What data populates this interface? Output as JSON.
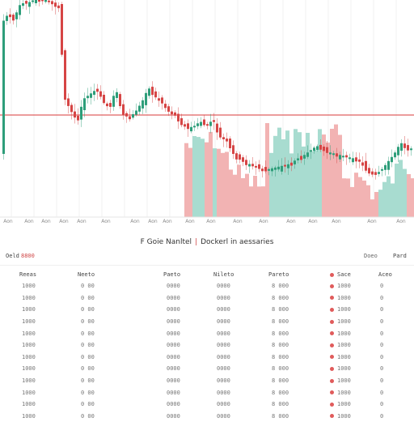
{
  "chart_data": {
    "type": "candlestick",
    "reference_line": 142,
    "x_tick_labels": [
      "Aon",
      "Aon",
      "Aon",
      "Aon",
      "Aon",
      "Aon",
      "Aon",
      "Aon",
      "Aon",
      "Aon",
      "Aon",
      "Aon",
      "Aon",
      "Aon",
      "Aon",
      "Aon",
      "Aon",
      "Aon"
    ],
    "colors": {
      "up": "#2e9e7a",
      "down": "#d64545",
      "volume_up": "#a8dcd0",
      "volume_down": "#f2b3b3",
      "reference": "#e06060",
      "grid": "#f0f0f0"
    }
  },
  "panel": {
    "title_left": "F Goie Nanltel",
    "separator": "|",
    "title_right": "Dockerl in aessaries"
  },
  "toolbar": {
    "label": "Oeld",
    "value": "8800",
    "action_1": "Doeo",
    "action_2": "Pard"
  },
  "table": {
    "headers": [
      "Reeas",
      "Neeto",
      "Paeto",
      "Nileto",
      "Pareto",
      "Sace",
      "Aceo"
    ],
    "rows": [
      [
        "1000",
        "0 00",
        "0000",
        "0000",
        "8 000",
        "1000",
        "0"
      ],
      [
        "1000",
        "0 00",
        "0000",
        "0000",
        "8 000",
        "1000",
        "0"
      ],
      [
        "1000",
        "0 00",
        "0000",
        "0000",
        "8 000",
        "1000",
        "0"
      ],
      [
        "1000",
        "0 00",
        "0000",
        "0000",
        "8 000",
        "1000",
        "0"
      ],
      [
        "1000",
        "0 00",
        "0000",
        "0000",
        "8 000",
        "1000",
        "0"
      ],
      [
        "1000",
        "0 00",
        "0000",
        "0000",
        "8 000",
        "1000",
        "0"
      ],
      [
        "1000",
        "0 00",
        "0000",
        "0000",
        "8 000",
        "1000",
        "0"
      ],
      [
        "1000",
        "0 00",
        "0000",
        "0000",
        "8 000",
        "1000",
        "0"
      ],
      [
        "1000",
        "0 00",
        "0000",
        "0000",
        "8 000",
        "1000",
        "0"
      ],
      [
        "1000",
        "0 00",
        "0000",
        "0000",
        "8 000",
        "1000",
        "0"
      ],
      [
        "1000",
        "0 00",
        "0000",
        "0000",
        "8 000",
        "1000",
        "0"
      ],
      [
        "1000",
        "0 00",
        "0000",
        "0000",
        "8 000",
        "1000",
        "0"
      ]
    ]
  }
}
